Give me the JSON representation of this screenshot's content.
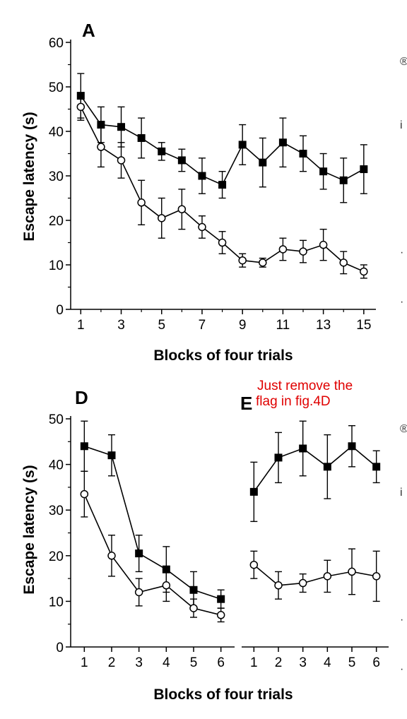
{
  "annotation": {
    "line1": "Just remove the",
    "line2": "flag in fig.4D",
    "color": "#e00000"
  },
  "edge_marks": [
    "®",
    "i",
    "·",
    "·",
    "®",
    "i",
    "·",
    "·"
  ],
  "chart_data": [
    {
      "panel": "A",
      "type": "line",
      "xlabel": "Blocks of four trials",
      "ylabel": "Escape latency (s)",
      "xlim": [
        0.5,
        15.6
      ],
      "ylim": [
        0,
        60
      ],
      "x_ticks": [
        1,
        3,
        5,
        7,
        9,
        11,
        13,
        15
      ],
      "y_ticks": [
        0,
        10,
        20,
        30,
        40,
        50,
        60
      ],
      "x": [
        1,
        2,
        3,
        4,
        5,
        6,
        7,
        8,
        9,
        10,
        11,
        12,
        13,
        14,
        15
      ],
      "series": [
        {
          "marker": "filled-square",
          "values": [
            48,
            41.5,
            41,
            38.5,
            35.5,
            33.5,
            30,
            28,
            37,
            33,
            37.5,
            35,
            31,
            29,
            31.5
          ],
          "errors": [
            5,
            4,
            4.5,
            4.5,
            2,
            2.5,
            4,
            3,
            4.5,
            5.5,
            5.5,
            4,
            4,
            5,
            5.5
          ]
        },
        {
          "marker": "open-circle",
          "values": [
            45.5,
            36.5,
            33.5,
            24,
            20.5,
            22.5,
            18.5,
            15,
            11,
            10.5,
            13.5,
            13,
            14.5,
            10.5,
            8.5
          ],
          "errors": [
            3,
            4.5,
            4,
            5,
            4.5,
            4.5,
            2.5,
            2.5,
            1.5,
            1,
            2.5,
            2.5,
            3.5,
            2.5,
            1.5
          ]
        }
      ]
    },
    {
      "panel": "D",
      "type": "line",
      "xlabel": "Blocks of four trials",
      "ylabel": "Escape latency (s)",
      "xlim": [
        0.5,
        6.5
      ],
      "ylim": [
        0,
        50
      ],
      "x_ticks": [
        1,
        2,
        3,
        4,
        5,
        6
      ],
      "y_ticks": [
        0,
        10,
        20,
        30,
        40,
        50
      ],
      "x": [
        1,
        2,
        3,
        4,
        5,
        6
      ],
      "series": [
        {
          "marker": "filled-square",
          "values": [
            44,
            42,
            20.5,
            17,
            12.5,
            10.5
          ],
          "errors": [
            5.5,
            4.5,
            4,
            5,
            4,
            2
          ]
        },
        {
          "marker": "open-circle",
          "values": [
            33.5,
            20,
            12,
            13.5,
            8.5,
            7
          ],
          "errors": [
            5,
            4.5,
            3,
            3.5,
            2,
            1.5
          ]
        }
      ]
    },
    {
      "panel": "E",
      "type": "line",
      "xlabel": "",
      "ylabel": "",
      "xlim": [
        0.5,
        6.5
      ],
      "ylim": [
        0,
        50
      ],
      "x_ticks": [
        1,
        2,
        3,
        4,
        5,
        6
      ],
      "y_ticks": [],
      "x": [
        1,
        2,
        3,
        4,
        5,
        6
      ],
      "series": [
        {
          "marker": "filled-square",
          "values": [
            34,
            41.5,
            43.5,
            39.5,
            44,
            39.5
          ],
          "errors": [
            6.5,
            5.5,
            6,
            7,
            4.5,
            3.5
          ]
        },
        {
          "marker": "open-circle",
          "values": [
            18,
            13.5,
            14,
            15.5,
            16.5,
            15.5
          ],
          "errors": [
            3,
            3,
            2,
            3.5,
            5,
            5.5
          ]
        }
      ]
    }
  ]
}
